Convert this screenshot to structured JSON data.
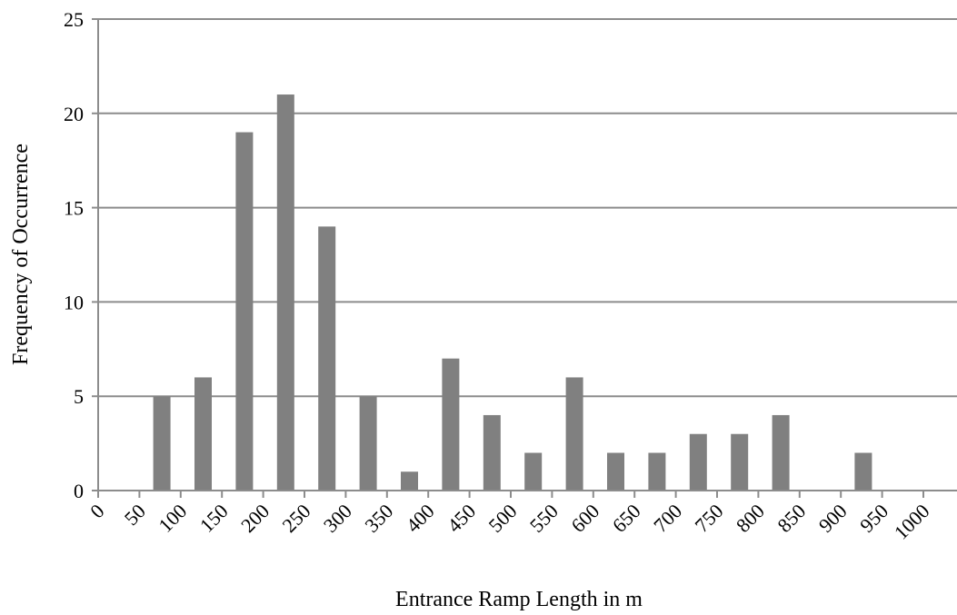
{
  "chart_data": {
    "type": "bar",
    "title": "",
    "xlabel": "Entrance Ramp Length in m",
    "ylabel": "Frequency of Occurrence",
    "categories": [
      "0",
      "50",
      "100",
      "150",
      "200",
      "250",
      "300",
      "350",
      "400",
      "450",
      "500",
      "550",
      "600",
      "650",
      "700",
      "750",
      "800",
      "850",
      "900",
      "950",
      "1000"
    ],
    "values": [
      0,
      5,
      6,
      19,
      21,
      14,
      5,
      1,
      7,
      4,
      2,
      6,
      2,
      2,
      3,
      3,
      4,
      0,
      2,
      0,
      0
    ],
    "ylim": [
      0,
      25
    ],
    "yticks": [
      0,
      5,
      10,
      15,
      20,
      25
    ],
    "grid": true,
    "legend": "none",
    "colors": {
      "bar": "#808080",
      "grid": "#8c8c8c",
      "axis": "#8c8c8c"
    }
  }
}
